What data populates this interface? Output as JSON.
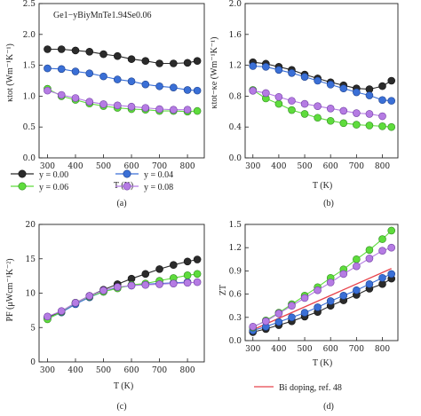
{
  "figure": {
    "formula": "Ge1−yBiyMnTe1.94Se0.06",
    "legend": [
      {
        "label": "y = 0.00",
        "color": "#2b2b2b"
      },
      {
        "label": "y = 0.04",
        "color": "#3a6fd6"
      },
      {
        "label": "y = 0.06",
        "color": "#5edc3c"
      },
      {
        "label": "y = 0.08",
        "color": "#b57be3"
      }
    ],
    "ref_label": "Bi doping, ref. 48",
    "ref_color": "#e8444c"
  },
  "chart_data": [
    {
      "id": "a",
      "panel_label": "(a)",
      "type": "line",
      "xlabel": "T (K)",
      "ylabel": "κtot (Wm⁻¹K⁻¹)",
      "xlim": [
        270,
        860
      ],
      "ylim": [
        0,
        2.5
      ],
      "xticks": [
        300,
        400,
        500,
        600,
        700,
        800
      ],
      "yticks": [
        0.0,
        0.5,
        1.0,
        1.5,
        2.0,
        2.5
      ],
      "ytick_labels": [
        "0.0",
        "0.5",
        "1.0",
        "1.5",
        "2.0",
        "2.5"
      ],
      "x": [
        300,
        350,
        400,
        450,
        500,
        550,
        600,
        650,
        700,
        750,
        800,
        835
      ],
      "series": [
        {
          "name": "y = 0.00",
          "values": [
            1.76,
            1.76,
            1.74,
            1.72,
            1.68,
            1.65,
            1.6,
            1.57,
            1.53,
            1.53,
            1.54,
            1.57
          ]
        },
        {
          "name": "y = 0.04",
          "values": [
            1.45,
            1.44,
            1.4,
            1.37,
            1.32,
            1.27,
            1.24,
            1.19,
            1.16,
            1.14,
            1.1,
            1.09
          ]
        },
        {
          "name": "y = 0.06",
          "values": [
            1.12,
            1.0,
            0.94,
            0.88,
            0.84,
            0.81,
            0.79,
            0.78,
            0.76,
            0.76,
            0.75,
            0.76
          ]
        },
        {
          "name": "y = 0.08",
          "values": [
            1.09,
            1.02,
            0.97,
            0.91,
            0.87,
            0.85,
            0.83,
            0.81,
            0.79,
            0.78,
            0.78,
            null
          ]
        }
      ]
    },
    {
      "id": "b",
      "panel_label": "(b)",
      "type": "line",
      "xlabel": "T (K)",
      "ylabel": "κtot−κe (Wm⁻¹K⁻¹)",
      "xlim": [
        270,
        860
      ],
      "ylim": [
        0,
        2.0
      ],
      "xticks": [
        300,
        400,
        500,
        600,
        700,
        800
      ],
      "yticks": [
        0.0,
        0.4,
        0.8,
        1.2,
        1.6,
        2.0
      ],
      "ytick_labels": [
        "0.0",
        "0.4",
        "0.8",
        "1.2",
        "1.6",
        "2.0"
      ],
      "x": [
        300,
        350,
        400,
        450,
        500,
        550,
        600,
        650,
        700,
        750,
        800,
        835
      ],
      "series": [
        {
          "name": "y = 0.00",
          "values": [
            1.24,
            1.22,
            1.18,
            1.14,
            1.08,
            1.03,
            0.98,
            0.94,
            0.9,
            0.89,
            0.93,
            1.0
          ]
        },
        {
          "name": "y = 0.04",
          "values": [
            1.19,
            1.18,
            1.14,
            1.1,
            1.05,
            1.0,
            0.95,
            0.9,
            0.85,
            0.81,
            0.75,
            0.74
          ]
        },
        {
          "name": "y = 0.06",
          "values": [
            0.88,
            0.77,
            0.7,
            0.62,
            0.57,
            0.52,
            0.48,
            0.45,
            0.43,
            0.42,
            0.41,
            0.4
          ]
        },
        {
          "name": "y = 0.08",
          "values": [
            0.87,
            0.84,
            0.79,
            0.74,
            0.7,
            0.67,
            0.64,
            0.61,
            0.58,
            0.57,
            0.54,
            null
          ]
        }
      ]
    },
    {
      "id": "c",
      "panel_label": "(c)",
      "type": "line",
      "xlabel": "T (K)",
      "ylabel": "PF (μWcm⁻¹K⁻²)",
      "xlim": [
        270,
        860
      ],
      "ylim": [
        0,
        20
      ],
      "xticks": [
        300,
        400,
        500,
        600,
        700,
        800
      ],
      "yticks": [
        0,
        5,
        10,
        15,
        20
      ],
      "ytick_labels": [
        "0",
        "5",
        "10",
        "15",
        "20"
      ],
      "x": [
        300,
        350,
        400,
        450,
        500,
        550,
        600,
        650,
        700,
        750,
        800,
        835
      ],
      "series": [
        {
          "name": "y = 0.00",
          "values": [
            6.5,
            7.3,
            8.6,
            9.6,
            10.5,
            11.3,
            12.1,
            12.8,
            13.5,
            14.1,
            14.6,
            14.9
          ]
        },
        {
          "name": "y = 0.04",
          "values": [
            6.3,
            7.2,
            8.4,
            9.4,
            10.2,
            10.8,
            11.1,
            11.3,
            11.4,
            11.5,
            11.6,
            null
          ]
        },
        {
          "name": "y = 0.06",
          "values": [
            6.2,
            7.3,
            8.6,
            9.5,
            10.2,
            10.7,
            11.2,
            11.4,
            11.8,
            12.2,
            12.6,
            12.8
          ]
        },
        {
          "name": "y = 0.08",
          "values": [
            6.6,
            7.4,
            8.6,
            9.6,
            10.4,
            10.9,
            11.1,
            11.2,
            11.3,
            11.4,
            11.5,
            11.6
          ]
        }
      ]
    },
    {
      "id": "d",
      "panel_label": "(d)",
      "type": "line",
      "xlabel": "T (K)",
      "ylabel": "ZT",
      "xlim": [
        270,
        860
      ],
      "ylim": [
        0,
        1.5
      ],
      "xticks": [
        300,
        400,
        500,
        600,
        700,
        800
      ],
      "yticks": [
        0.0,
        0.3,
        0.6,
        0.9,
        1.2,
        1.5
      ],
      "ytick_labels": [
        "0.0",
        "0.3",
        "0.6",
        "0.9",
        "1.2",
        "1.5"
      ],
      "x": [
        300,
        350,
        400,
        450,
        500,
        550,
        600,
        650,
        700,
        750,
        800,
        835
      ],
      "series": [
        {
          "name": "y = 0.00",
          "values": [
            0.11,
            0.15,
            0.2,
            0.25,
            0.31,
            0.37,
            0.45,
            0.52,
            0.59,
            0.67,
            0.73,
            0.8
          ]
        },
        {
          "name": "y = 0.04",
          "values": [
            0.13,
            0.18,
            0.24,
            0.3,
            0.36,
            0.43,
            0.51,
            0.58,
            0.65,
            0.73,
            0.81,
            0.86
          ]
        },
        {
          "name": "y = 0.06",
          "values": [
            0.17,
            0.26,
            0.36,
            0.47,
            0.58,
            0.69,
            0.81,
            0.92,
            1.05,
            1.17,
            1.31,
            1.42
          ]
        },
        {
          "name": "y = 0.08",
          "values": [
            0.18,
            0.25,
            0.35,
            0.45,
            0.55,
            0.65,
            0.75,
            0.86,
            0.96,
            1.06,
            1.16,
            1.2
          ]
        }
      ],
      "reference": {
        "name": "Bi doping, ref. 48",
        "x": [
          300,
          835
        ],
        "values": [
          0.14,
          0.93
        ]
      }
    }
  ]
}
